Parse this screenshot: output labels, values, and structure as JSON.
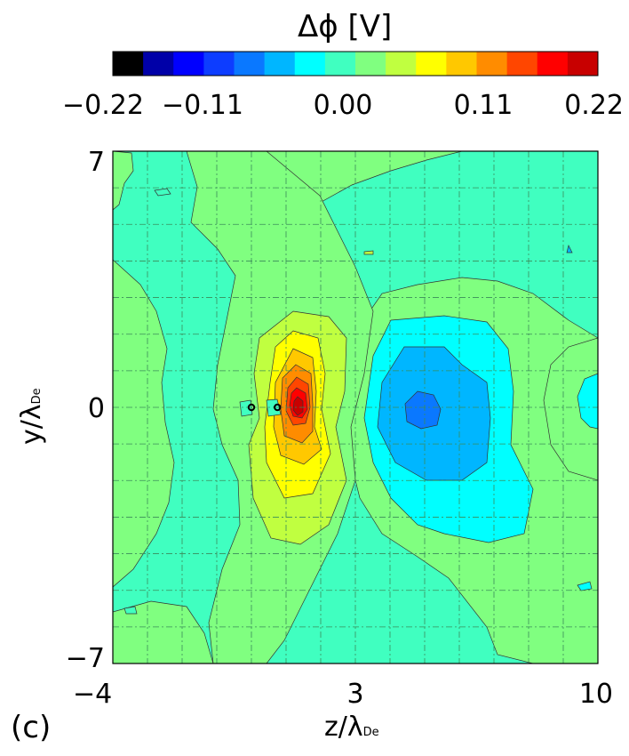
{
  "panel_label": "(c)",
  "chart_data": {
    "type": "heatmap",
    "title": "Δϕ  [V]",
    "xlabel": {
      "main": "z/λ",
      "sub": "De"
    },
    "ylabel": {
      "main": "y/λ",
      "sub": "De"
    },
    "xlim": [
      -4,
      10
    ],
    "ylim": [
      -7,
      7
    ],
    "x_ticks": [
      -4,
      3,
      10
    ],
    "y_ticks": [
      -7,
      0,
      7
    ],
    "x_tick_labels": [
      "−4",
      "3",
      "10"
    ],
    "y_tick_labels": [
      "−7",
      "0",
      "7"
    ],
    "grid": true,
    "colorbar": {
      "range": [
        -0.22,
        0.22
      ],
      "tick_labels": [
        "−0.22",
        "−0.11",
        "0.00",
        "0.11",
        "0.22"
      ],
      "levels": [
        "#000000",
        "#0000a8",
        "#0000ff",
        "#0d3dff",
        "#0a78ff",
        "#00b6ff",
        "#00ffff",
        "#40ffc0",
        "#80ff80",
        "#c0ff40",
        "#ffff00",
        "#ffc800",
        "#ff8c00",
        "#ff4600",
        "#ff0000",
        "#c80000"
      ]
    },
    "features": [
      {
        "name": "positive potential lobe",
        "z": 1.3,
        "y": 0.0,
        "peak": 0.22
      },
      {
        "name": "negative potential well",
        "z": 5.0,
        "y": 0.0,
        "peak": -0.11
      },
      {
        "name": "negative patch",
        "z": 10.0,
        "y": 0.6,
        "peak": -0.03
      }
    ],
    "markers": [
      {
        "name": "particle-left",
        "z": 0.0,
        "y": 0.0
      },
      {
        "name": "particle-right",
        "z": 0.75,
        "y": 0.0
      }
    ]
  }
}
